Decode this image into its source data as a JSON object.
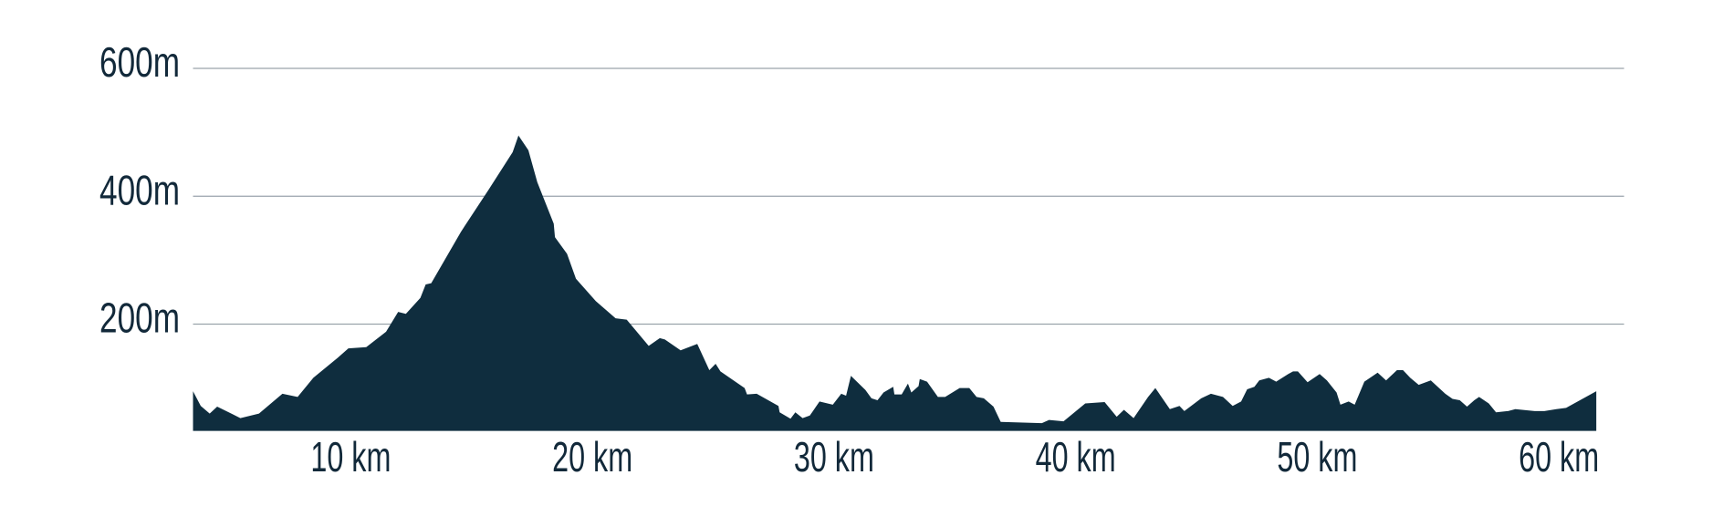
{
  "chart_data": {
    "type": "area",
    "color": "#0f2d3e",
    "grid": true,
    "x": [
      3.47,
      3.79,
      4.16,
      4.47,
      5.43,
      6.2,
      7.17,
      7.8,
      8.45,
      9.45,
      9.9,
      10.64,
      11.46,
      11.96,
      12.28,
      12.88,
      13.1,
      13.33,
      14.57,
      15.7,
      16.7,
      16.94,
      17.35,
      17.72,
      18.4,
      18.45,
      18.95,
      19.32,
      20.14,
      20.96,
      21.42,
      22.33,
      22.79,
      23.0,
      23.65,
      24.34,
      24.84,
      25.1,
      25.3,
      26.3,
      26.4,
      26.8,
      27.7,
      27.75,
      28.2,
      28.4,
      28.7,
      29.0,
      29.4,
      29.95,
      30.3,
      30.5,
      30.7,
      31.3,
      31.55,
      31.8,
      32.05,
      32.45,
      32.5,
      32.8,
      33.06,
      33.2,
      33.5,
      33.55,
      33.85,
      34.3,
      34.6,
      35.2,
      35.6,
      35.9,
      36.2,
      36.6,
      36.9,
      38.6,
      38.9,
      39.5,
      40.4,
      41.2,
      41.7,
      42.0,
      42.4,
      43.0,
      43.3,
      43.9,
      44.3,
      44.5,
      45.2,
      45.6,
      46.1,
      46.5,
      46.85,
      47.1,
      47.4,
      47.6,
      48.0,
      48.3,
      48.8,
      49.0,
      49.2,
      49.6,
      50.1,
      50.4,
      50.8,
      50.96,
      51.3,
      51.55,
      51.95,
      52.5,
      52.85,
      53.3,
      53.55,
      53.85,
      54.2,
      54.7,
      55.1,
      55.3,
      55.6,
      55.9,
      56.2,
      56.5,
      56.7,
      57.1,
      57.4,
      57.9,
      58.2,
      59.0,
      59.4,
      59.9,
      60.3,
      61.55
    ],
    "values": [
      95,
      72,
      60,
      71,
      53,
      60,
      91,
      86,
      116,
      147,
      162,
      164,
      188,
      219,
      216,
      241,
      262,
      264,
      345,
      410,
      469,
      495,
      472,
      422,
      357,
      336,
      310,
      271,
      236,
      209,
      207,
      166,
      178,
      176,
      159,
      169,
      128,
      138,
      126,
      100,
      90,
      91,
      72,
      62,
      52,
      62,
      53,
      57,
      79,
      74,
      91,
      88,
      119,
      97,
      84,
      81,
      93,
      102,
      90,
      90,
      107,
      93,
      103,
      114,
      110,
      86,
      86,
      100,
      100,
      86,
      84,
      71,
      47,
      45,
      50,
      48,
      76,
      78,
      55,
      66,
      53,
      86,
      100,
      67,
      72,
      64,
      84,
      91,
      86,
      72,
      79,
      98,
      102,
      112,
      116,
      110,
      122,
      126,
      126,
      109,
      122,
      112,
      93,
      74,
      79,
      74,
      110,
      124,
      112,
      128,
      128,
      116,
      105,
      112,
      98,
      91,
      83,
      81,
      71,
      81,
      86,
      76,
      62,
      64,
      67,
      64,
      64,
      67,
      69,
      95
    ],
    "xlim": [
      3.47,
      62.7
    ],
    "ylim": [
      33,
      600
    ],
    "xticks": [
      {
        "value": 10,
        "label": "10 km"
      },
      {
        "value": 20,
        "label": "20 km"
      },
      {
        "value": 30,
        "label": "30 km"
      },
      {
        "value": 40,
        "label": "40 km"
      },
      {
        "value": 50,
        "label": "50 km"
      },
      {
        "value": 60,
        "label": "60 km"
      }
    ],
    "yticks": [
      {
        "value": 200,
        "label": "200m"
      },
      {
        "value": 400,
        "label": "400m"
      },
      {
        "value": 600,
        "label": "600m"
      }
    ]
  }
}
